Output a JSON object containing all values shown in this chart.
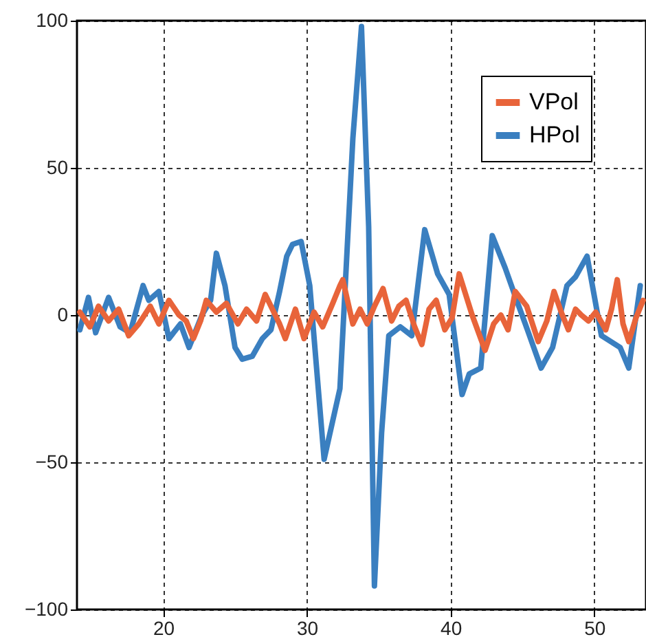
{
  "chart_data": {
    "type": "line",
    "xlim": [
      14,
      53.6
    ],
    "ylim": [
      -100,
      100
    ],
    "xticks": [
      20,
      30,
      40,
      50
    ],
    "yticks": [
      -100,
      -50,
      0,
      50,
      100
    ],
    "grid": true,
    "legend": "top right",
    "line_style": "solid",
    "marker": "none",
    "series": [
      {
        "name": "VPol",
        "color": "#e8643a",
        "x": [
          14.2,
          14.9,
          15.5,
          16.2,
          16.9,
          17.6,
          18.3,
          19.1,
          19.7,
          20.4,
          21.1,
          21.6,
          22.1,
          22.6,
          23,
          23.7,
          24.4,
          25.2,
          25.8,
          26.5,
          27.1,
          27.7,
          28.1,
          28.5,
          29.2,
          29.8,
          30.5,
          31.1,
          31.8,
          32.3,
          32.5,
          33.2,
          33.7,
          34.2,
          34.7,
          35.3,
          35.9,
          36.4,
          36.9,
          37.5,
          38,
          38.5,
          39,
          39.6,
          40.1,
          40.6,
          41.5,
          42.4,
          43,
          43.5,
          44,
          44.5,
          45.3,
          46.1,
          46.7,
          47.2,
          47.7,
          48.2,
          48.7,
          49.1,
          49.6,
          50.1,
          50.8,
          51.2,
          51.6,
          52,
          52.4,
          52.9,
          53.4
        ],
        "values": [
          1,
          -4,
          3,
          -2,
          2,
          -7,
          -3,
          3,
          -3,
          5,
          0,
          -2,
          -8,
          -2,
          5,
          1,
          4,
          -3,
          2,
          -2,
          7,
          1,
          -3,
          -8,
          2,
          -8,
          1,
          -4,
          4,
          10,
          12,
          -3,
          2,
          -3,
          3,
          9,
          -2,
          3,
          5,
          -4,
          -10,
          2,
          5,
          -5,
          -1,
          14,
          0,
          -12,
          -3,
          0,
          -5,
          8,
          3,
          -9,
          -2,
          8,
          1,
          -5,
          2,
          0,
          -2,
          1,
          -5,
          2,
          12,
          -3,
          -9,
          -1,
          5
        ]
      },
      {
        "name": "HPol",
        "color": "#3a7fc0",
        "x": [
          14.2,
          14.8,
          15.3,
          16.2,
          17,
          17.7,
          18.6,
          19,
          19.7,
          20.4,
          21.2,
          21.8,
          22.7,
          23.3,
          23.7,
          24.3,
          25,
          25.5,
          26.2,
          26.9,
          27.5,
          28.1,
          28.6,
          29,
          29.6,
          30.2,
          31.2,
          32.3,
          33.2,
          33.8,
          34.3,
          34.7,
          35.2,
          35.7,
          36.5,
          37.3,
          38.2,
          39.1,
          39.9,
          40.8,
          41.3,
          42.1,
          42.9,
          43.8,
          44.6,
          45.2,
          46.3,
          47.1,
          48.1,
          48.7,
          49.5,
          50.5,
          51.8,
          52.4,
          53.2
        ],
        "values": [
          -5,
          6,
          -6,
          6,
          -4,
          -6,
          10,
          5,
          8,
          -8,
          -3,
          -11,
          0,
          5,
          21,
          10,
          -11,
          -15,
          -14,
          -8,
          -5,
          8,
          20,
          24,
          25,
          10,
          -49,
          -25,
          60,
          98,
          30,
          -92,
          -40,
          -7,
          -4,
          -7,
          29,
          14,
          7,
          -27,
          -20,
          -18,
          27,
          16,
          5,
          -3,
          -18,
          -11,
          10,
          13,
          20,
          -7,
          -11,
          -18,
          10
        ]
      }
    ]
  }
}
